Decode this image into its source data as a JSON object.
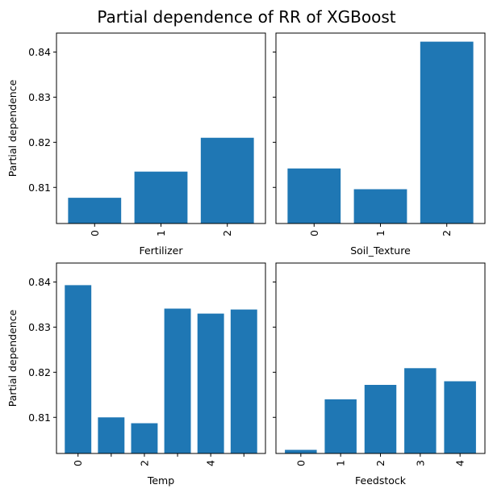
{
  "figure": {
    "title": "Partial dependence of RR of XGBoost"
  },
  "chart_data": [
    {
      "type": "bar",
      "xlabel": "Fertilizer",
      "ylabel": "Partial dependence",
      "categories": [
        0,
        1,
        2
      ],
      "x_ticks": [
        "0",
        "1",
        "2"
      ],
      "values": [
        0.8077,
        0.8135,
        0.821
      ],
      "ylim": [
        0.802,
        0.8442
      ],
      "y_ticks": [
        "0.81",
        "0.82",
        "0.83",
        "0.84"
      ],
      "color": "#1f77b4"
    },
    {
      "type": "bar",
      "xlabel": "Soil_Texture",
      "ylabel": "",
      "categories": [
        0,
        1,
        2
      ],
      "x_ticks": [
        "0",
        "1",
        "2"
      ],
      "values": [
        0.8142,
        0.8096,
        0.8423
      ],
      "ylim": [
        0.802,
        0.8442
      ],
      "y_ticks": [],
      "color": "#1f77b4"
    },
    {
      "type": "bar",
      "xlabel": "Temp",
      "ylabel": "Partial dependence",
      "categories": [
        0,
        1,
        2,
        3,
        4,
        5
      ],
      "x_ticks": [
        "0",
        "",
        "2",
        "",
        "4",
        ""
      ],
      "values": [
        0.8393,
        0.81,
        0.8087,
        0.8341,
        0.833,
        0.8339
      ],
      "ylim": [
        0.802,
        0.8442
      ],
      "y_ticks": [
        "0.81",
        "0.82",
        "0.83",
        "0.84"
      ],
      "color": "#1f77b4"
    },
    {
      "type": "bar",
      "xlabel": "Feedstock",
      "ylabel": "",
      "categories": [
        0,
        1,
        2,
        3,
        4
      ],
      "x_ticks": [
        "0",
        "1",
        "2",
        "3",
        "4"
      ],
      "values": [
        0.8028,
        0.814,
        0.8172,
        0.8209,
        0.818
      ],
      "ylim": [
        0.802,
        0.8442
      ],
      "y_ticks": [],
      "color": "#1f77b4"
    }
  ]
}
